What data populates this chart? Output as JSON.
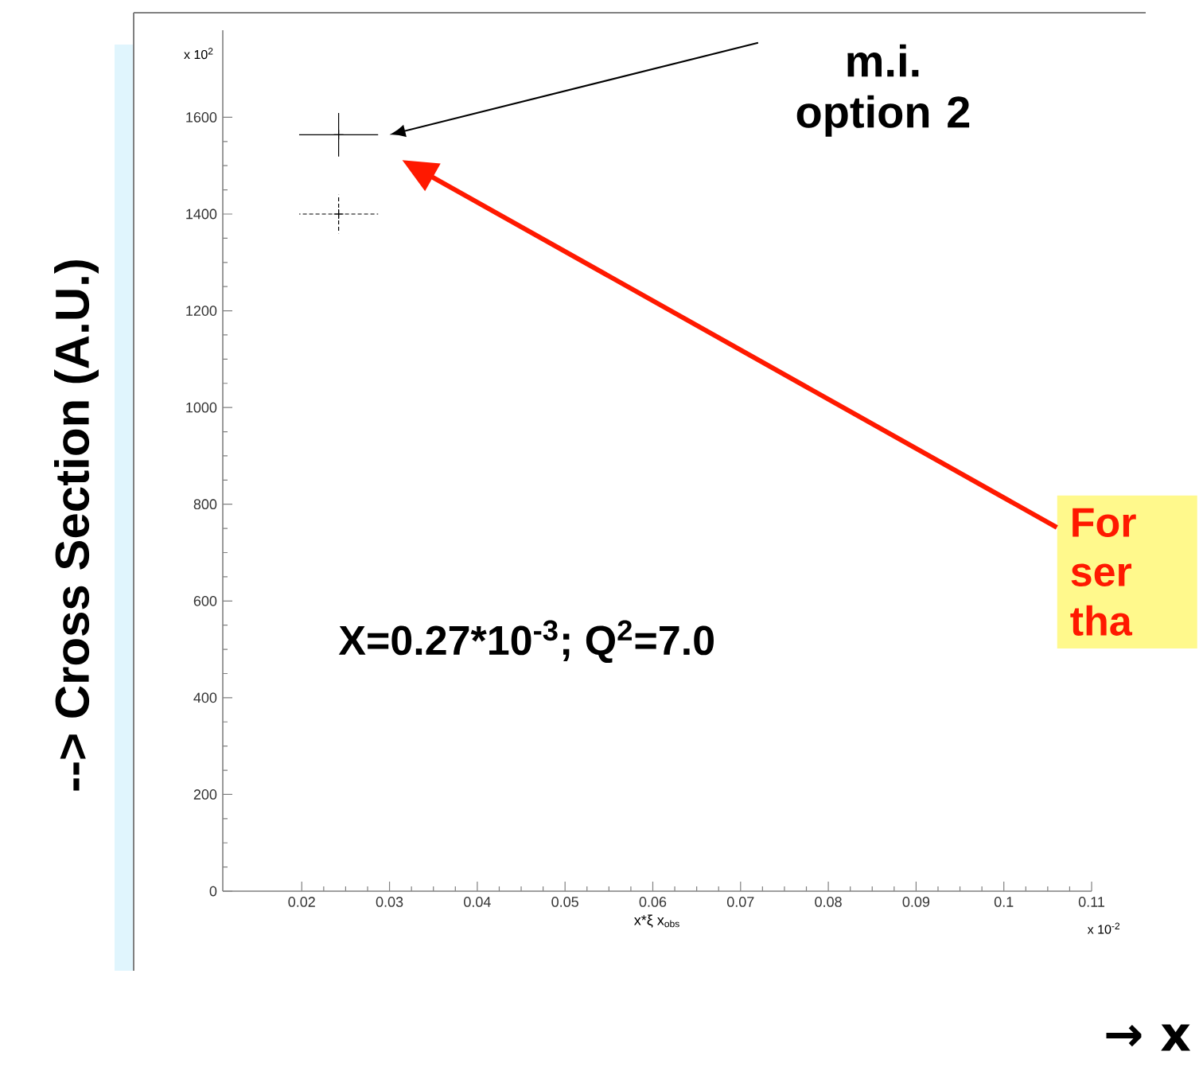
{
  "chart_data": {
    "type": "scatter",
    "ylabel": "--> Cross Section (A.U.)",
    "xlabel": "x*ξ x$_{obs}$",
    "x": [
      0.0242
    ],
    "series": [
      {
        "color": "#000000",
        "line_style": "solid",
        "values": [
          1564
        ],
        "errors": [
          45
        ],
        "xerrors": [
          0.0045
        ]
      },
      {
        "color": "#000000",
        "line_style": "dashed",
        "values": [
          1400
        ],
        "errors": [
          40
        ],
        "xerrors": [
          0.0045
        ]
      }
    ],
    "xlim": [
      0.011,
      0.11
    ],
    "xticks": [
      0.02,
      0.03,
      0.04,
      0.05,
      0.06,
      0.07,
      0.08,
      0.09,
      0.1,
      0.11
    ],
    "ylim": [
      0,
      1780
    ],
    "yticks": [
      0,
      200,
      400,
      600,
      800,
      1000,
      1200,
      1400,
      1600
    ],
    "marker": "cross",
    "grid": false,
    "annotations": [
      "x 10$^{2}$",
      "x 10$^{-2}$",
      "m.i. option 2",
      "X=0.27*10$^{-3}$; Q$^{2}$=7.0",
      "For ser tha",
      "→ x"
    ]
  }
}
